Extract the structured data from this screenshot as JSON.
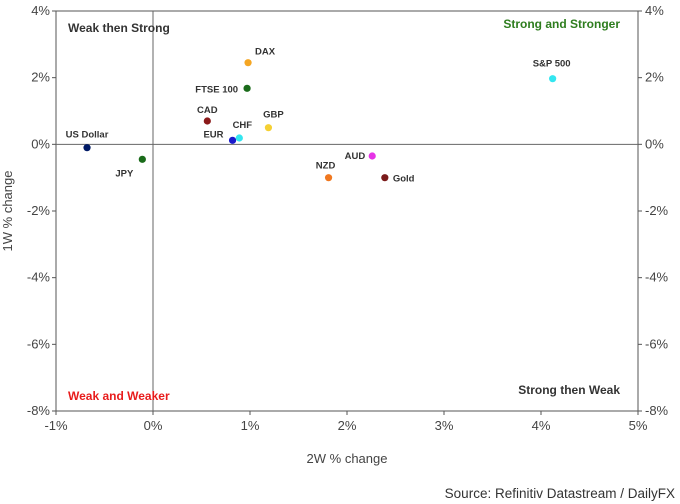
{
  "chart_data": {
    "type": "scatter",
    "xlabel": "2W % change",
    "ylabel": "1W % change",
    "xlim": [
      -1,
      5
    ],
    "ylim": [
      -8,
      4
    ],
    "x_ticks": [
      "-1%",
      "0%",
      "1%",
      "2%",
      "3%",
      "4%",
      "5%"
    ],
    "y_ticks": [
      "4%",
      "2%",
      "0%",
      "-2%",
      "-4%",
      "-6%",
      "-8%"
    ],
    "quadrants": {
      "top_left": {
        "label": "Weak then Strong",
        "color": "#333333"
      },
      "top_right": {
        "label": "Strong and Stronger",
        "color": "#2e7d1e"
      },
      "bottom_left": {
        "label": "Weak and Weaker",
        "color": "#e81c1c"
      },
      "bottom_right": {
        "label": "Strong then Weak",
        "color": "#333333"
      }
    },
    "points": [
      {
        "name": "DAX",
        "x": 0.98,
        "y": 2.45,
        "color": "#f5a623"
      },
      {
        "name": "S&P 500",
        "x": 4.12,
        "y": 1.97,
        "color": "#33e6f0"
      },
      {
        "name": "FTSE 100",
        "x": 0.97,
        "y": 1.68,
        "color": "#1a6b1a"
      },
      {
        "name": "CAD",
        "x": 0.56,
        "y": 0.7,
        "color": "#8b1a1a"
      },
      {
        "name": "GBP",
        "x": 1.19,
        "y": 0.5,
        "color": "#f5d033"
      },
      {
        "name": "CHF",
        "x": 0.89,
        "y": 0.19,
        "color": "#33e6f0"
      },
      {
        "name": "EUR",
        "x": 0.82,
        "y": 0.12,
        "color": "#1a1acc"
      },
      {
        "name": "US Dollar",
        "x": -0.68,
        "y": -0.1,
        "color": "#001a66"
      },
      {
        "name": "JPY",
        "x": -0.11,
        "y": -0.45,
        "color": "#1a6b1a"
      },
      {
        "name": "AUD",
        "x": 2.26,
        "y": -0.35,
        "color": "#e633e6"
      },
      {
        "name": "NZD",
        "x": 1.81,
        "y": -1.0,
        "color": "#f07820"
      },
      {
        "name": "Gold",
        "x": 2.39,
        "y": -1.0,
        "color": "#7a1a1a"
      }
    ]
  },
  "source": "Source: Refinitiv Datastream / DailyFX"
}
